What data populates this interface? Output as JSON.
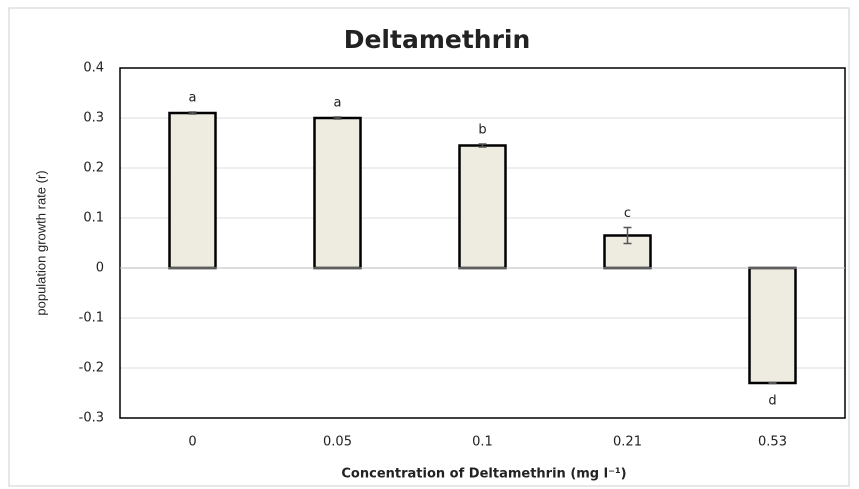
{
  "chart_data": {
    "type": "bar",
    "title": "Deltamethrin",
    "x_label": "Concentration of Deltamethrin (mg l⁻¹)",
    "y_label": "population growth rate (r)",
    "categories": [
      "0",
      "0.05",
      "0.1",
      "0.21",
      "0.53"
    ],
    "values": [
      0.31,
      0.3,
      0.245,
      0.065,
      -0.23
    ],
    "errors": [
      0.002,
      0.002,
      0.003,
      0.016,
      0.001
    ],
    "annotations": [
      "a",
      "a",
      "b",
      "c",
      "d"
    ],
    "color": "#eeebe0",
    "ylim": [
      -0.3,
      0.4
    ],
    "yticks": [
      -0.3,
      -0.2,
      -0.1,
      0,
      0.1,
      0.2,
      0.3,
      0.4
    ],
    "grid": true
  }
}
